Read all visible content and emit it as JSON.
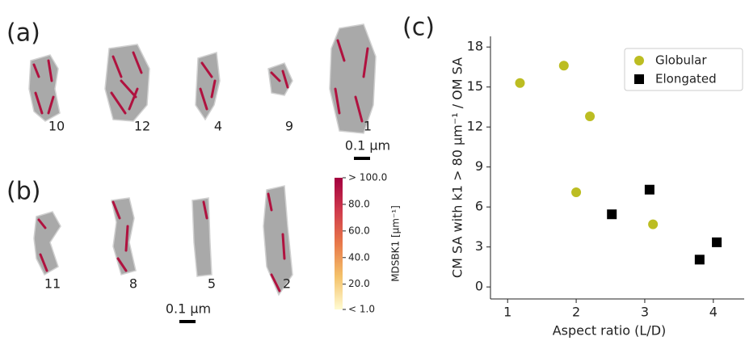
{
  "panels": {
    "a": "(a)",
    "b": "(b)",
    "c": "(c)",
    "top_particles": [
      "10",
      "12",
      "4",
      "9",
      "1"
    ],
    "bottom_particles": [
      "11",
      "8",
      "5",
      "2"
    ],
    "scale_bar_top": "0.1 μm",
    "scale_bar_bottom": "0.1 μm"
  },
  "colorbar": {
    "label": "MDSBK1 [μm⁻¹]",
    "range": [
      1,
      100
    ],
    "colors": [
      "#fffbd2",
      "#f4c26a",
      "#e8794a",
      "#cf3a4c",
      "#a3003f"
    ],
    "ticks": [
      {
        "value": 100,
        "label": "> 100.0"
      },
      {
        "value": 80,
        "label": "80.0"
      },
      {
        "value": 60,
        "label": "60.0"
      },
      {
        "value": 40,
        "label": "40.0"
      },
      {
        "value": 20,
        "label": "20.0"
      },
      {
        "value": 1,
        "label": "< 1.0"
      }
    ]
  },
  "chart_data": {
    "type": "scatter",
    "xlabel": "Aspect ratio (L/D)",
    "ylabel": "CM SA with k1 > 80 μm⁻¹ / OM SA",
    "xlim": [
      0.75,
      4.45
    ],
    "ylim": [
      -0.9,
      18.8
    ],
    "xticks": [
      1,
      2,
      3,
      4
    ],
    "yticks": [
      0,
      3,
      6,
      9,
      12,
      15,
      18
    ],
    "legend": "upper right",
    "series": [
      {
        "name": "Globular",
        "color": "#bcbd22",
        "marker": "circle",
        "x": [
          1.18,
          1.82,
          2.2,
          2.0,
          3.12
        ],
        "values": [
          15.3,
          16.6,
          12.8,
          7.1,
          4.7
        ]
      },
      {
        "name": "Elongated",
        "color": "#000000",
        "marker": "square",
        "x": [
          2.52,
          3.07,
          3.8,
          4.05
        ],
        "values": [
          5.45,
          7.3,
          2.05,
          3.35
        ]
      }
    ]
  }
}
